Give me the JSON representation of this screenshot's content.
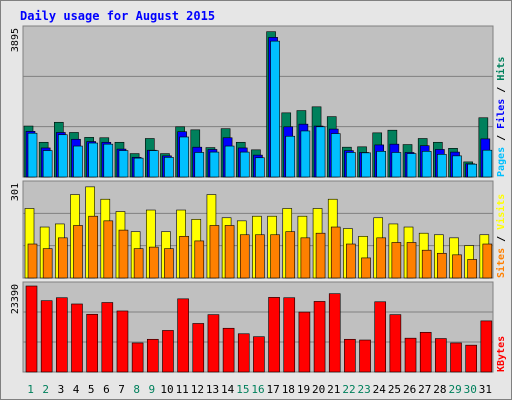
{
  "chart_data": {
    "type": "bar",
    "title": "Daily usage for August 2015",
    "categories": [
      "1",
      "2",
      "3",
      "4",
      "5",
      "6",
      "7",
      "8",
      "9",
      "10",
      "11",
      "12",
      "13",
      "14",
      "15",
      "16",
      "17",
      "18",
      "19",
      "20",
      "21",
      "22",
      "23",
      "24",
      "25",
      "26",
      "27",
      "28",
      "29",
      "30",
      "31"
    ],
    "weekend_days": [
      "1",
      "2",
      "8",
      "9",
      "15",
      "16",
      "22",
      "23",
      "29",
      "30"
    ],
    "panels": [
      {
        "name": "pages-files-hits",
        "max_label": "3895",
        "ylim": [
          0,
          3895
        ],
        "labels": [
          {
            "text": "Pages",
            "color": "#00c0ff"
          },
          {
            "text": "Files",
            "color": "#0000ff"
          },
          {
            "text": "Hits",
            "color": "#00805c"
          }
        ],
        "series": [
          {
            "name": "Hits",
            "color": "#00805c",
            "values": [
              1350,
              920,
              1450,
              1180,
              1050,
              1040,
              920,
              620,
              1020,
              620,
              1330,
              1250,
              780,
              1280,
              920,
              720,
              3850,
              1700,
              1760,
              1860,
              1600,
              790,
              800,
              1170,
              1240,
              860,
              1020,
              920,
              760,
              400,
              1570
            ]
          },
          {
            "name": "Files",
            "color": "#0000ff",
            "values": [
              1210,
              770,
              1180,
              1000,
              940,
              920,
              740,
              520,
              710,
              560,
              1200,
              790,
              730,
              1040,
              770,
              580,
              3700,
              1330,
              1400,
              1350,
              1270,
              700,
              650,
              850,
              870,
              650,
              830,
              730,
              660,
              350,
              1010
            ]
          },
          {
            "name": "Pages",
            "color": "#00c0ff",
            "values": [
              1160,
              700,
              1120,
              820,
              900,
              870,
              700,
              500,
              700,
              520,
              1060,
              650,
              660,
              820,
              660,
              510,
              3600,
              1080,
              1220,
              1330,
              1150,
              650,
              640,
              680,
              650,
              620,
              680,
              600,
              560,
              340,
              710
            ]
          }
        ]
      },
      {
        "name": "sites-visits",
        "max_label": "301",
        "ylim": [
          0,
          301
        ],
        "labels": [
          {
            "text": "Sites",
            "color": "#ff8000"
          },
          {
            "text": "Visits",
            "color": "#ffff00"
          }
        ],
        "series": [
          {
            "name": "Visits",
            "color": "#ffff00",
            "values": [
              225,
              165,
              175,
              270,
              295,
              255,
              215,
              150,
              220,
              150,
              220,
              190,
              270,
              195,
              185,
              200,
              200,
              225,
              200,
              225,
              255,
              160,
              135,
              195,
              175,
              165,
              145,
              140,
              130,
              105,
              140
            ]
          },
          {
            "name": "Sites",
            "color": "#ff8000",
            "values": [
              110,
              95,
              130,
              170,
              200,
              185,
              155,
              95,
              100,
              95,
              135,
              120,
              170,
              170,
              140,
              140,
              140,
              150,
              130,
              145,
              165,
              110,
              65,
              130,
              115,
              115,
              90,
              80,
              75,
              60,
              110
            ]
          }
        ]
      },
      {
        "name": "kbytes",
        "max_label": "23390",
        "ylim": [
          0,
          23390
        ],
        "labels": [
          {
            "text": "KBytes",
            "color": "#ff0000"
          }
        ],
        "series": [
          {
            "name": "KBytes",
            "color": "#ff0000",
            "values": [
              23390,
              19400,
              20200,
              18500,
              15700,
              18900,
              16600,
              7900,
              8900,
              11300,
              19900,
              13200,
              15600,
              11900,
              10400,
              9600,
              20300,
              20200,
              16300,
              19200,
              21300,
              8900,
              8700,
              19100,
              15600,
              9200,
              10800,
              9100,
              7900,
              7300,
              13900
            ]
          }
        ]
      }
    ]
  },
  "colors": {
    "title": "#0000ff",
    "panel_bg": "#c0c0c0",
    "frame": "#e6e6e6",
    "gridline": "#808080",
    "day_weekday": "#000000",
    "day_weekend": "#00805c"
  }
}
